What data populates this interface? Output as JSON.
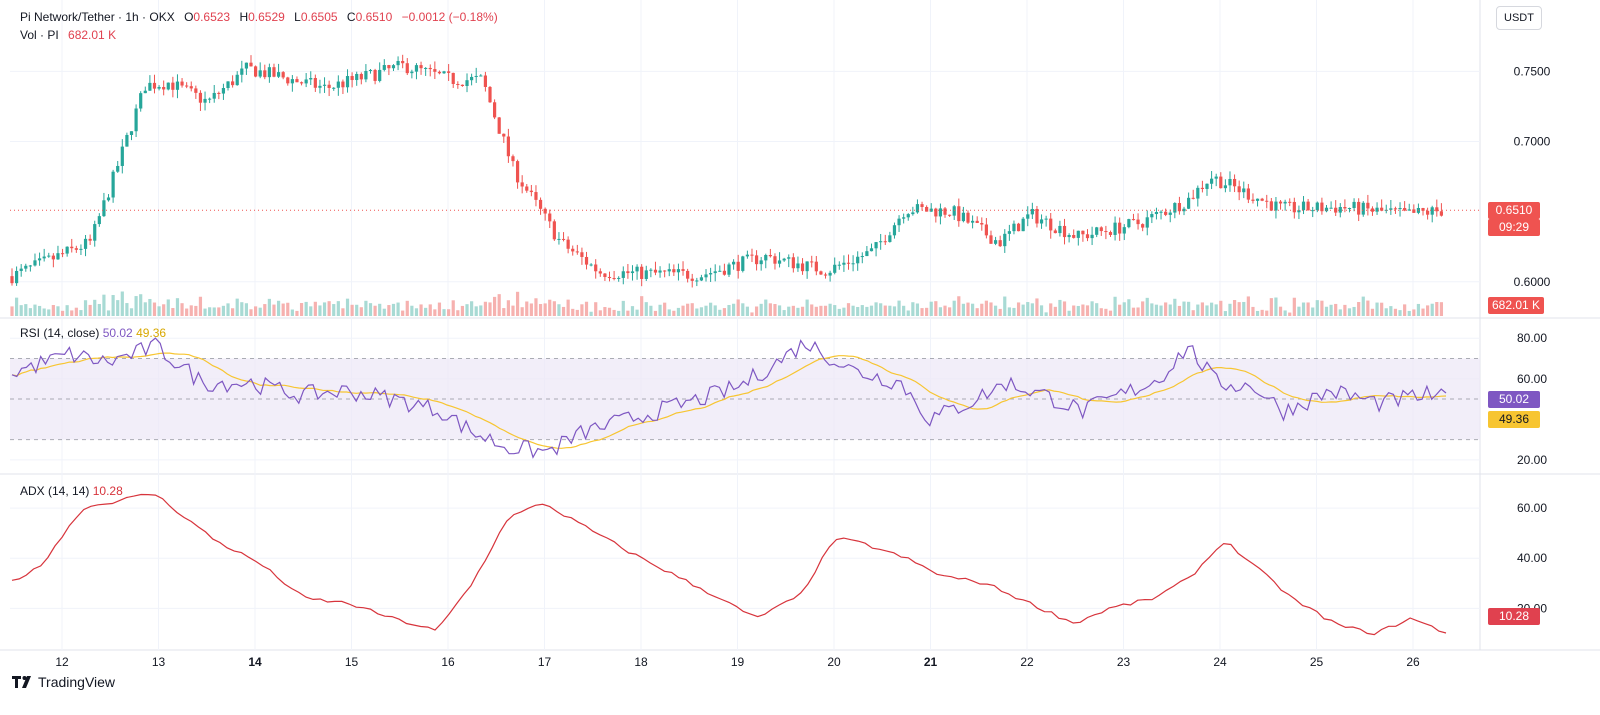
{
  "header": {
    "symbol": "Pi Network/Tether · 1h · OKX",
    "o_label": "O",
    "o_value": "0.6523",
    "h_label": "H",
    "h_value": "0.6529",
    "l_label": "L",
    "l_value": "0.6505",
    "c_label": "C",
    "c_value": "0.6510",
    "change": "−0.0012 (−0.18%)",
    "vol_label": "Vol · PI",
    "vol_value": "682.01 K"
  },
  "currency_button": "USDT",
  "price_tag": {
    "price": "0.6510",
    "countdown": "09:29",
    "volume": "682.01 K"
  },
  "rsi": {
    "label": "RSI (14, close)",
    "value": "50.02",
    "ma_value": "49.36"
  },
  "adx": {
    "label": "ADX (14, 14)",
    "value": "10.28"
  },
  "branding": {
    "name": "TradingView"
  },
  "colors": {
    "up": "#26a69a",
    "down": "#ef5350",
    "rsi_line": "#7e57c2",
    "rsi_ma": "#f7c531",
    "adx_line": "#d7343c",
    "rsi_band": "#ede7f6"
  },
  "chart_data": {
    "type": "candlestick",
    "x_ticks": [
      "12",
      "13",
      "14",
      "15",
      "16",
      "17",
      "18",
      "19",
      "20",
      "21",
      "22",
      "23",
      "24",
      "25",
      "26"
    ],
    "x_ticks_bold": [
      "14",
      "21"
    ],
    "price": {
      "y_ticks": [
        "0.7500",
        "0.7000",
        "0.6000"
      ],
      "y_tick_values": [
        0.75,
        0.7,
        0.6
      ],
      "ylim": [
        0.587,
        0.798
      ],
      "last": 0.651,
      "anchors": [
        [
          0.0,
          0.604
        ],
        [
          1.0,
          0.628
        ],
        [
          1.3,
          0.675
        ],
        [
          1.7,
          0.74
        ],
        [
          2.0,
          0.742
        ],
        [
          2.5,
          0.728
        ],
        [
          3.0,
          0.752
        ],
        [
          4.0,
          0.738
        ],
        [
          5.0,
          0.754
        ],
        [
          5.6,
          0.744
        ],
        [
          6.0,
          0.744
        ],
        [
          6.4,
          0.68
        ],
        [
          7.0,
          0.628
        ],
        [
          7.5,
          0.607
        ],
        [
          8.0,
          0.606
        ],
        [
          8.8,
          0.605
        ],
        [
          9.6,
          0.618
        ],
        [
          10.4,
          0.608
        ],
        [
          11.0,
          0.622
        ],
        [
          11.4,
          0.652
        ],
        [
          12.0,
          0.65
        ],
        [
          12.6,
          0.628
        ],
        [
          13.0,
          0.648
        ],
        [
          13.6,
          0.632
        ],
        [
          14.4,
          0.642
        ],
        [
          15.0,
          0.658
        ],
        [
          15.3,
          0.675
        ],
        [
          15.8,
          0.662
        ],
        [
          16.2,
          0.652
        ],
        [
          17.0,
          0.653
        ],
        [
          17.8,
          0.648
        ],
        [
          18.3,
          0.651
        ]
      ]
    },
    "volume": {
      "last_label": "682.01 K"
    },
    "rsi": {
      "y_ticks": [
        "80.00",
        "60.00",
        "20.00"
      ],
      "y_tick_values": [
        80,
        60,
        20
      ],
      "ylim": [
        15,
        88
      ],
      "bands": [
        70,
        50,
        30
      ],
      "value": 50.02,
      "ma": 49.36,
      "anchors": [
        [
          0.0,
          63
        ],
        [
          0.6,
          72
        ],
        [
          1.0,
          68
        ],
        [
          1.5,
          76
        ],
        [
          2.0,
          58
        ],
        [
          2.5,
          58
        ],
        [
          3.0,
          52
        ],
        [
          3.5,
          54
        ],
        [
          4.0,
          50
        ],
        [
          4.5,
          44
        ],
        [
          4.8,
          34
        ],
        [
          5.2,
          26
        ],
        [
          5.6,
          24
        ],
        [
          6.0,
          34
        ],
        [
          6.6,
          42
        ],
        [
          7.2,
          50
        ],
        [
          7.6,
          56
        ],
        [
          8.0,
          68
        ],
        [
          8.3,
          78
        ],
        [
          8.8,
          64
        ],
        [
          9.3,
          58
        ],
        [
          9.6,
          40
        ],
        [
          10.0,
          48
        ],
        [
          10.4,
          58
        ],
        [
          10.8,
          52
        ],
        [
          11.2,
          44
        ],
        [
          11.6,
          52
        ],
        [
          12.0,
          60
        ],
        [
          12.3,
          76
        ],
        [
          12.6,
          58
        ],
        [
          13.0,
          56
        ],
        [
          13.3,
          44
        ],
        [
          13.8,
          54
        ],
        [
          14.3,
          48
        ],
        [
          14.8,
          52
        ],
        [
          15.0,
          50
        ]
      ]
    },
    "adx": {
      "y_ticks": [
        "60.00",
        "40.00",
        "20.00"
      ],
      "y_tick_values": [
        60,
        40,
        20
      ],
      "ylim": [
        5,
        72
      ],
      "value": 10.28,
      "anchors": [
        [
          0.0,
          31
        ],
        [
          0.3,
          36
        ],
        [
          0.8,
          60
        ],
        [
          1.6,
          66
        ],
        [
          2.3,
          47
        ],
        [
          2.8,
          38
        ],
        [
          3.3,
          24
        ],
        [
          3.8,
          22
        ],
        [
          4.3,
          16
        ],
        [
          4.8,
          11
        ],
        [
          5.2,
          30
        ],
        [
          5.6,
          56
        ],
        [
          6.0,
          62
        ],
        [
          6.5,
          52
        ],
        [
          7.0,
          42
        ],
        [
          7.5,
          33
        ],
        [
          8.0,
          24
        ],
        [
          8.4,
          16
        ],
        [
          8.9,
          25
        ],
        [
          9.3,
          48
        ],
        [
          9.6,
          46
        ],
        [
          10.1,
          40
        ],
        [
          10.5,
          33
        ],
        [
          11.0,
          30
        ],
        [
          11.5,
          22
        ],
        [
          12.0,
          14
        ],
        [
          12.4,
          20
        ],
        [
          12.9,
          24
        ],
        [
          13.3,
          32
        ],
        [
          13.7,
          47
        ],
        [
          14.1,
          35
        ],
        [
          14.5,
          23
        ],
        [
          15.0,
          13
        ],
        [
          15.4,
          10
        ],
        [
          15.8,
          16
        ],
        [
          16.2,
          10.3
        ]
      ]
    }
  }
}
